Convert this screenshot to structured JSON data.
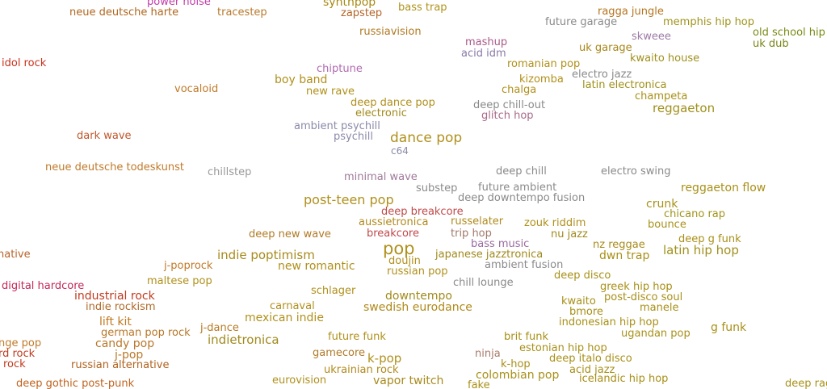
{
  "genres": [
    {
      "label": "power noise",
      "color": "#c23ca8"
    },
    {
      "label": "synthpop",
      "color": "#a88a14"
    },
    {
      "label": "neue deutsche harte",
      "color": "#b0661e"
    },
    {
      "label": "tracestep",
      "color": "#b87a2c"
    },
    {
      "label": "zapstep",
      "color": "#b46428"
    },
    {
      "label": "bass trap",
      "color": "#b0921a"
    },
    {
      "label": "ragga jungle",
      "color": "#b6741c"
    },
    {
      "label": "future garage",
      "color": "#8a8a8a"
    },
    {
      "label": "memphis hip hop",
      "color": "#a0941c"
    },
    {
      "label": "old school hip hop",
      "color": "#7a8a14"
    },
    {
      "label": "russiavision",
      "color": "#b07a22"
    },
    {
      "label": "skweee",
      "color": "#9c7aa4"
    },
    {
      "label": "uk dub",
      "color": "#7a8418"
    },
    {
      "label": "mashup",
      "color": "#a85a8a"
    },
    {
      "label": "uk garage",
      "color": "#a88618"
    },
    {
      "label": "acid idm",
      "color": "#8a7aa8"
    },
    {
      "label": "kwaito house",
      "color": "#a0901c"
    },
    {
      "label": "idol rock",
      "color": "#c8321e"
    },
    {
      "label": "romanian pop",
      "color": "#b0901c"
    },
    {
      "label": "chiptune",
      "color": "#b06ab0"
    },
    {
      "label": "electro jazz",
      "color": "#8a8a8a"
    },
    {
      "label": "kizomba",
      "color": "#b0901c"
    },
    {
      "label": "boy band",
      "color": "#b0901c"
    },
    {
      "label": "latin electronica",
      "color": "#a0901c"
    },
    {
      "label": "vocaloid",
      "color": "#c07a28"
    },
    {
      "label": "new rave",
      "color": "#b09018"
    },
    {
      "label": "chalga",
      "color": "#b0901c"
    },
    {
      "label": "champeta",
      "color": "#a89018"
    },
    {
      "label": "deep dance pop",
      "color": "#b0901c"
    },
    {
      "label": "reggaeton",
      "color": "#a0901c"
    },
    {
      "label": "deep chill-out",
      "color": "#8a8a8a"
    },
    {
      "label": "electronic",
      "color": "#a08a1c"
    },
    {
      "label": "glitch hop",
      "color": "#a86a88"
    },
    {
      "label": "ambient psychill",
      "color": "#8a8aaa"
    },
    {
      "label": "psychill",
      "color": "#8a8aaa"
    },
    {
      "label": "dark wave",
      "color": "#c0562a"
    },
    {
      "label": "dance pop",
      "color": "#b0901c"
    },
    {
      "label": "c64",
      "color": "#8a8aaa"
    },
    {
      "label": "neue deutsche todeskunst",
      "color": "#c07a2a"
    },
    {
      "label": "chillstep",
      "color": "#9a9a9a"
    },
    {
      "label": "minimal wave",
      "color": "#a07a9a"
    },
    {
      "label": "deep chill",
      "color": "#8a8a8a"
    },
    {
      "label": "electro swing",
      "color": "#8a8a8a"
    },
    {
      "label": "substep",
      "color": "#8a8a8a"
    },
    {
      "label": "future ambient",
      "color": "#8a8a8a"
    },
    {
      "label": "reggaeton flow",
      "color": "#a89018"
    },
    {
      "label": "post-teen pop",
      "color": "#b0901c"
    },
    {
      "label": "deep downtempo fusion",
      "color": "#8a8a8a"
    },
    {
      "label": "crunk",
      "color": "#a89018"
    },
    {
      "label": "deep breakcore",
      "color": "#c04a4a"
    },
    {
      "label": "chicano rap",
      "color": "#a0941c"
    },
    {
      "label": "aussietronica",
      "color": "#b08a1c"
    },
    {
      "label": "russelater",
      "color": "#b08a1c"
    },
    {
      "label": "zouk riddim",
      "color": "#b0901c"
    },
    {
      "label": "bounce",
      "color": "#a89018"
    },
    {
      "label": "breakcore",
      "color": "#c0484a"
    },
    {
      "label": "trip hop",
      "color": "#a07a6a"
    },
    {
      "label": "nu jazz",
      "color": "#a08a1c"
    },
    {
      "label": "deep new wave",
      "color": "#b07a24"
    },
    {
      "label": "deep g funk",
      "color": "#a89018"
    },
    {
      "label": "bass music",
      "color": "#9a6aa0"
    },
    {
      "label": "nz reggae",
      "color": "#a88a1c"
    },
    {
      "label": "pop",
      "color": "#b0901c"
    },
    {
      "label": "latin hip hop",
      "color": "#a0901c"
    },
    {
      "label": "native",
      "color": "#b8622a"
    },
    {
      "label": "indie poptimism",
      "color": "#a88a1c"
    },
    {
      "label": "japanese jazztronica",
      "color": "#a08a1c"
    },
    {
      "label": "dwn trap",
      "color": "#a89018"
    },
    {
      "label": "doujin",
      "color": "#b0901c"
    },
    {
      "label": "j-poprock",
      "color": "#c07a28"
    },
    {
      "label": "new romantic",
      "color": "#b0901c"
    },
    {
      "label": "ambient fusion",
      "color": "#8a8a8a"
    },
    {
      "label": "russian pop",
      "color": "#b0901c"
    },
    {
      "label": "deep disco",
      "color": "#a89018"
    },
    {
      "label": "maltese pop",
      "color": "#b0901c"
    },
    {
      "label": "digital hardcore",
      "color": "#c42858"
    },
    {
      "label": "chill lounge",
      "color": "#8a8a8a"
    },
    {
      "label": "greek hip hop",
      "color": "#a89018"
    },
    {
      "label": "schlager",
      "color": "#b0901c"
    },
    {
      "label": "industrial rock",
      "color": "#c03a1e"
    },
    {
      "label": "downtempo",
      "color": "#a08a1c"
    },
    {
      "label": "post-disco soul",
      "color": "#a89018"
    },
    {
      "label": "kwaito",
      "color": "#a89018"
    },
    {
      "label": "indie rockism",
      "color": "#b06a2a"
    },
    {
      "label": "carnaval",
      "color": "#b0901c"
    },
    {
      "label": "swedish eurodance",
      "color": "#b08a1c"
    },
    {
      "label": "manele",
      "color": "#a89018"
    },
    {
      "label": "bmore",
      "color": "#a89018"
    },
    {
      "label": "mexican indie",
      "color": "#b0901c"
    },
    {
      "label": "lift kit",
      "color": "#c0781e"
    },
    {
      "label": "indonesian hip hop",
      "color": "#a89018"
    },
    {
      "label": "j-dance",
      "color": "#b87a22"
    },
    {
      "label": "g funk",
      "color": "#a89018"
    },
    {
      "label": "german pop rock",
      "color": "#b8782a"
    },
    {
      "label": "ugandan pop",
      "color": "#a89018"
    },
    {
      "label": "future funk",
      "color": "#b0901c"
    },
    {
      "label": "brit funk",
      "color": "#a89018"
    },
    {
      "label": "indietronica",
      "color": "#a08a1c"
    },
    {
      "label": "candy pop",
      "color": "#b8782a"
    },
    {
      "label": "nge pop",
      "color": "#c07a28"
    },
    {
      "label": "estonian hip hop",
      "color": "#a89018"
    },
    {
      "label": "rd rock",
      "color": "#c03a1e"
    },
    {
      "label": "gamecore",
      "color": "#b07a2a"
    },
    {
      "label": "j-pop",
      "color": "#b8782a"
    },
    {
      "label": "k-pop",
      "color": "#b0901c"
    },
    {
      "label": "ninja",
      "color": "#a87a6a"
    },
    {
      "label": "deep italo disco",
      "color": "#a89018"
    },
    {
      "label": "rock",
      "color": "#c03a1e"
    },
    {
      "label": "russian alternative",
      "color": "#b0621e"
    },
    {
      "label": "k-hop",
      "color": "#a89018"
    },
    {
      "label": "ukrainian rock",
      "color": "#b08a1c"
    },
    {
      "label": "acid jazz",
      "color": "#a89018"
    },
    {
      "label": "colombian pop",
      "color": "#a89018"
    },
    {
      "label": "eurovision",
      "color": "#b0901c"
    },
    {
      "label": "vapor twitch",
      "color": "#a88a1c"
    },
    {
      "label": "icelandic hip hop",
      "color": "#a89018"
    },
    {
      "label": "deep gothic post-punk",
      "color": "#c0621e"
    },
    {
      "label": "fake",
      "color": "#a89018"
    },
    {
      "label": "deep rag",
      "color": "#a89018"
    }
  ]
}
